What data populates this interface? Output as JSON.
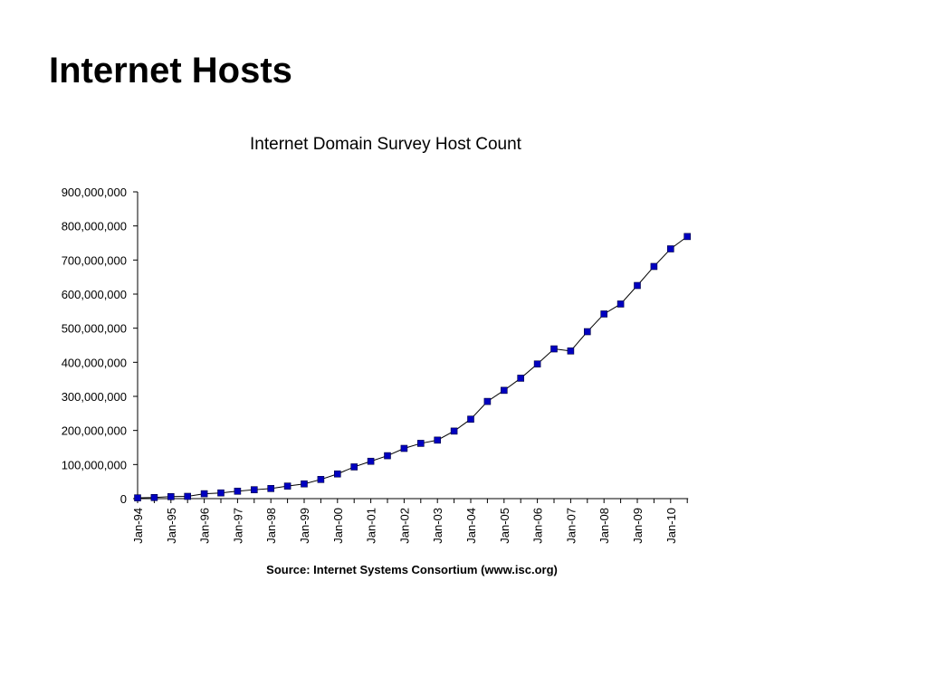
{
  "slide": {
    "title": "Internet Hosts"
  },
  "chart_data": {
    "type": "line",
    "title": "Internet Domain Survey Host Count",
    "source": "Source: Internet Systems Consortium (www.isc.org)",
    "xlabel": "",
    "ylabel": "",
    "ylim": [
      0,
      900000000
    ],
    "y_ticks": [
      "0",
      "100,000,000",
      "200,000,000",
      "300,000,000",
      "400,000,000",
      "500,000,000",
      "600,000,000",
      "700,000,000",
      "800,000,000",
      "900,000,000"
    ],
    "x_ticks": [
      "Jan-94",
      "Jan-95",
      "Jan-96",
      "Jan-97",
      "Jan-98",
      "Jan-99",
      "Jan-00",
      "Jan-01",
      "Jan-02",
      "Jan-03",
      "Jan-04",
      "Jan-05",
      "Jan-06",
      "Jan-07",
      "Jan-08",
      "Jan-09",
      "Jan-10"
    ],
    "grid": false,
    "marker": "square",
    "colors": {
      "marker": "#0000c0",
      "line": "#000000",
      "axis": "#000000"
    },
    "series": [
      {
        "x": [
          "Jan-94",
          "Jul-94",
          "Jan-95",
          "Jul-95",
          "Jan-96",
          "Jul-96",
          "Jan-97",
          "Jul-97",
          "Jan-98",
          "Jul-98",
          "Jan-99",
          "Jul-99",
          "Jan-00",
          "Jul-00",
          "Jan-01",
          "Jul-01",
          "Jan-02",
          "Jul-02",
          "Jan-03",
          "Jul-03",
          "Jan-04",
          "Jul-04",
          "Jan-05",
          "Jul-05",
          "Jan-06",
          "Jul-06",
          "Jan-07",
          "Jul-07",
          "Jan-08",
          "Jul-08",
          "Jan-09",
          "Jul-09",
          "Jan-10",
          "Jul-10"
        ],
        "values": [
          2217000,
          3212000,
          5846000,
          6642000,
          14352000,
          16729000,
          21819000,
          26053000,
          29670000,
          36739000,
          43230000,
          56218000,
          72398000,
          93047000,
          109574000,
          125888000,
          147345000,
          162128000,
          171638000,
          198133000,
          233101000,
          285139000,
          317646000,
          353284000,
          394991000,
          439286000,
          433193000,
          489774000,
          541677000,
          570937000,
          625226000,
          681064000,
          732740000,
          768913000
        ]
      }
    ]
  }
}
